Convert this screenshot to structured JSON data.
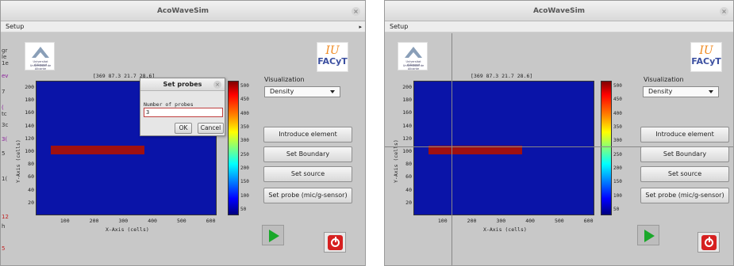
{
  "app_title": "AcoWaveSim",
  "menu": {
    "setup": "Setup",
    "arrow": "▸"
  },
  "logos": {
    "university": {
      "line1": "Universitat d'Alacant",
      "line2": "Universidad de Alicante"
    },
    "iu": {
      "top": "IU",
      "bottom": "FACyT"
    }
  },
  "coords_readout": "[369 87.3 21.7 28.6]",
  "visualization": {
    "label": "Visualization",
    "selected": "Density"
  },
  "buttons": {
    "introduce_element": "Introduce element",
    "set_boundary": "Set Boundary",
    "set_source": "Set source",
    "set_probe": "Set probe (mic/g-sensor)"
  },
  "plot": {
    "y_label": "Y-Axis (cells)",
    "x_label": "X-Axis (cells)",
    "y_ticks": [
      "200",
      "180",
      "160",
      "140",
      "120",
      "100",
      "80",
      "60",
      "40",
      "20"
    ],
    "x_ticks": [
      "100",
      "200",
      "300",
      "400",
      "500",
      "600"
    ],
    "colorbar_ticks": [
      "500",
      "450",
      "400",
      "350",
      "300",
      "250",
      "200",
      "150",
      "100",
      "50"
    ],
    "element": {
      "x_start": 50,
      "x_end": 370,
      "y_bottom": 96,
      "y_top": 110
    },
    "x_range": [
      0,
      620
    ],
    "y_range": [
      0,
      210
    ]
  },
  "dialog": {
    "title": "Set probes",
    "field_label": "Number of probes",
    "field_value": "3",
    "ok": "OK",
    "cancel": "Cancel"
  },
  "left_strip_text": [
    "gr",
    "le",
    "1e",
    "ev",
    "7",
    "(",
    "tc",
    "3c",
    "3(",
    "5",
    "1(",
    "12",
    "h",
    "5"
  ]
}
